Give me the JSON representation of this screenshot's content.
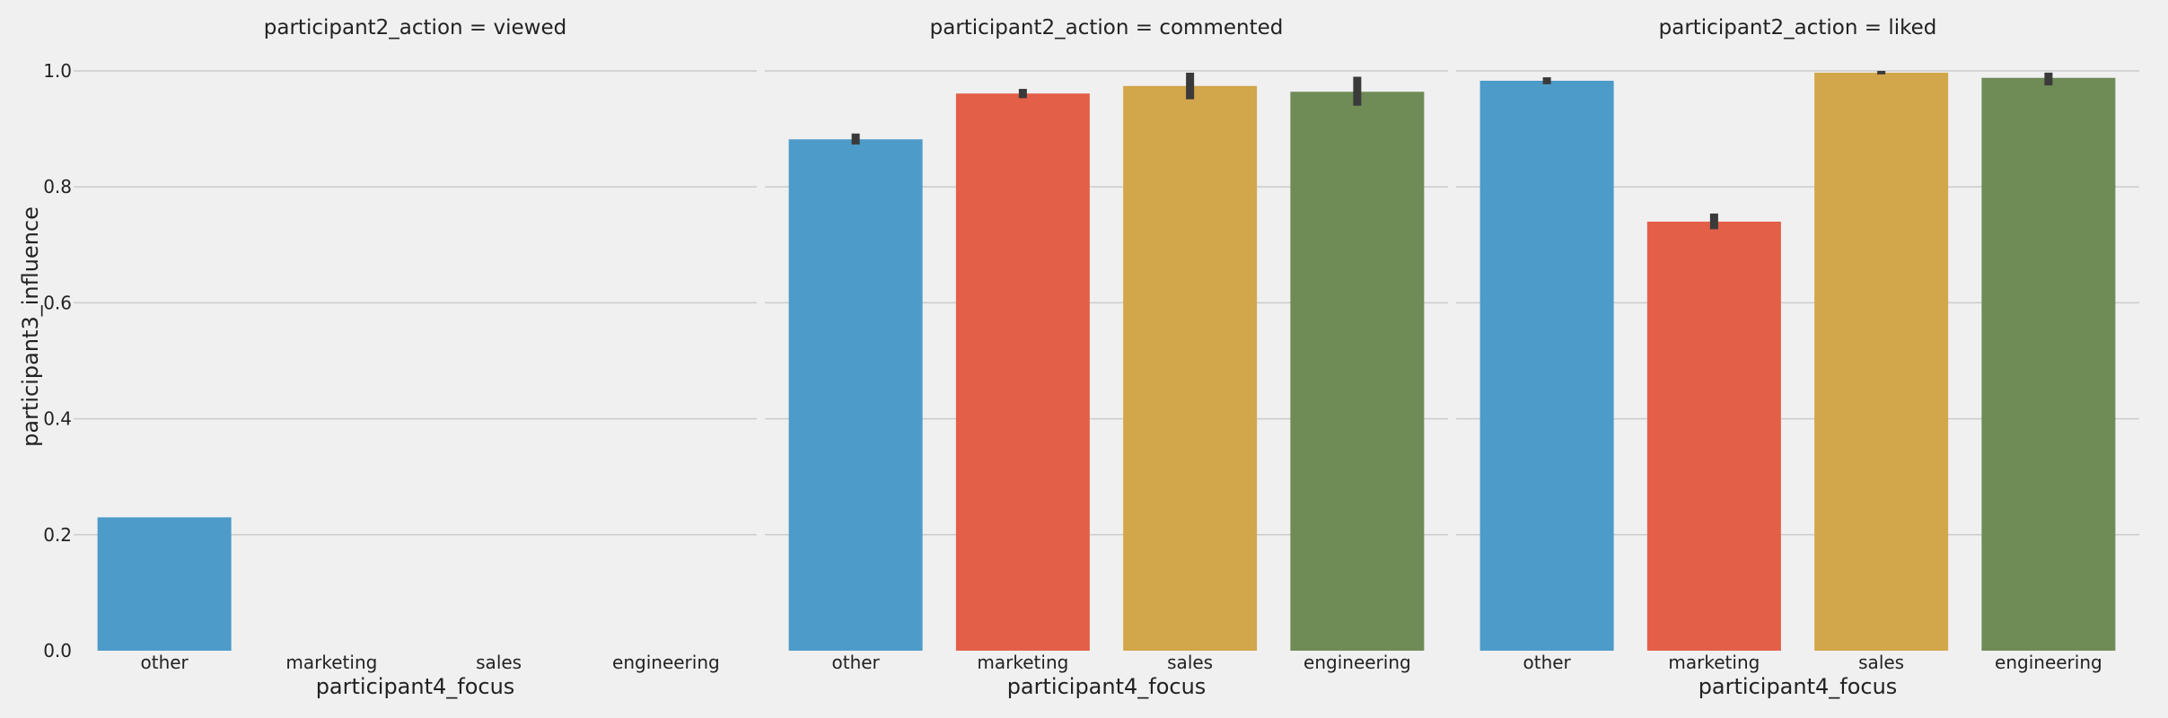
{
  "chart_data": {
    "type": "bar",
    "facet_variable": "participant2_action",
    "categories": [
      "other",
      "marketing",
      "sales",
      "engineering"
    ],
    "xlabel": "participant4_focus",
    "ylabel": "participant3_influence",
    "ylim": [
      0,
      1.05
    ],
    "yticks": [
      0.0,
      0.2,
      0.4,
      0.6,
      0.8,
      1.0
    ],
    "ytick_labels": [
      "0.0",
      "0.2",
      "0.4",
      "0.6",
      "0.8",
      "1.0"
    ],
    "grid": true,
    "colors": [
      "#4c9bc9",
      "#e45f48",
      "#d2a64a",
      "#6f8b56"
    ],
    "errorbar_color": "#3a3a3a",
    "facets": [
      {
        "title": "participant2_action = viewed",
        "values": [
          0.23,
          0.0,
          0.0,
          0.0
        ],
        "errors": [
          [
            0.23,
            0.23
          ],
          [
            0.0,
            0.0
          ],
          [
            0.0,
            0.0
          ],
          [
            0.0,
            0.0
          ]
        ]
      },
      {
        "title": "participant2_action = commented",
        "values": [
          0.882,
          0.961,
          0.974,
          0.964
        ],
        "errors": [
          [
            0.873,
            0.892
          ],
          [
            0.953,
            0.969
          ],
          [
            0.951,
            0.997
          ],
          [
            0.94,
            0.99
          ]
        ]
      },
      {
        "title": "participant2_action = liked",
        "values": [
          0.983,
          0.74,
          0.997,
          0.988
        ],
        "errors": [
          [
            0.977,
            0.989
          ],
          [
            0.727,
            0.754
          ],
          [
            0.994,
            1.0
          ],
          [
            0.975,
            0.997
          ]
        ]
      }
    ]
  }
}
